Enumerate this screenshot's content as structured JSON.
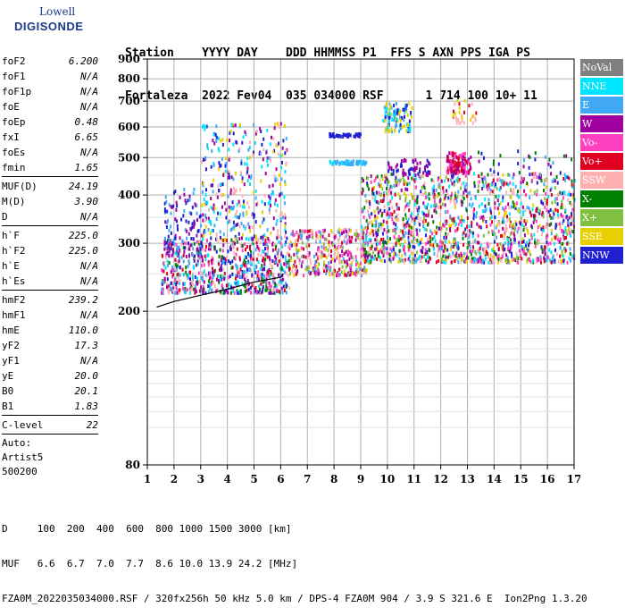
{
  "logo": {
    "line1": "Lowell",
    "line2": "DIGISONDE"
  },
  "header": {
    "line1": "Station    YYYY DAY    DDD HHMMSS P1  FFS S AXN PPS IGA PS",
    "line2": "Fortaleza  2022 Fev04  035 034000 RSF      1 714 100 10+ 11"
  },
  "params": {
    "group1": [
      {
        "label": "foF2",
        "value": "6.200"
      },
      {
        "label": "foF1",
        "value": "N/A"
      },
      {
        "label": "foF1p",
        "value": "N/A"
      },
      {
        "label": "foE",
        "value": "N/A"
      },
      {
        "label": "foEp",
        "value": "0.48"
      },
      {
        "label": "fxI",
        "value": "6.65"
      },
      {
        "label": "foEs",
        "value": "N/A"
      },
      {
        "label": "fmin",
        "value": "1.65"
      }
    ],
    "group2": [
      {
        "label": "MUF(D)",
        "value": "24.19"
      },
      {
        "label": "M(D)",
        "value": "3.90"
      },
      {
        "label": "D",
        "value": "N/A"
      }
    ],
    "group3": [
      {
        "label": "h`F",
        "value": "225.0"
      },
      {
        "label": "h`F2",
        "value": "225.0"
      },
      {
        "label": "h`E",
        "value": "N/A"
      },
      {
        "label": "h`Es",
        "value": "N/A"
      }
    ],
    "group4": [
      {
        "label": "hmF2",
        "value": "239.2"
      },
      {
        "label": "hmF1",
        "value": "N/A"
      },
      {
        "label": "hmE",
        "value": "110.0"
      },
      {
        "label": "yF2",
        "value": "17.3"
      },
      {
        "label": "yF1",
        "value": "N/A"
      },
      {
        "label": "yE",
        "value": "20.0"
      },
      {
        "label": "B0",
        "value": "20.1"
      },
      {
        "label": "B1",
        "value": "1.83"
      }
    ],
    "clevel": {
      "label": "C-level",
      "value": "22"
    },
    "auto": [
      "Auto:",
      "Artist5",
      "500200"
    ]
  },
  "legend": [
    {
      "label": "NoVal",
      "color": "#808080"
    },
    {
      "label": "NNE",
      "color": "#00e5ff"
    },
    {
      "label": "E",
      "color": "#3fa9f5"
    },
    {
      "label": "W",
      "color": "#a000a0"
    },
    {
      "label": "Vo-",
      "color": "#ff40c0"
    },
    {
      "label": "Vo+",
      "color": "#e00020"
    },
    {
      "label": "SSW",
      "color": "#ffb0b0"
    },
    {
      "label": "X-",
      "color": "#008000"
    },
    {
      "label": "X+",
      "color": "#80c040"
    },
    {
      "label": "SSE",
      "color": "#e8d000"
    },
    {
      "label": "NNW",
      "color": "#2020d0"
    }
  ],
  "footer": {
    "line1": "D     100  200  400  600  800 1000 1500 3000 [km]",
    "line2": "MUF   6.6  6.7  7.0  7.7  8.6 10.0 13.9 24.2 [MHz]",
    "line3": "FZA0M_2022035034000.RSF / 320fx256h 50 kHz 5.0 km / DPS-4 FZA0M 904 / 3.9 S 321.6 E  Ion2Png 1.3.20"
  },
  "chart_data": {
    "type": "scatter",
    "title": "",
    "xlabel": "",
    "ylabel": "",
    "xlim": [
      1,
      17
    ],
    "ylim": [
      80,
      900
    ],
    "y_scale": "log",
    "x_ticks": [
      "1",
      "2",
      "3",
      "4",
      "5",
      "6",
      "7",
      "8",
      "9",
      "10",
      "11",
      "12",
      "13",
      "14",
      "15",
      "16",
      "17"
    ],
    "y_ticks": [
      "80",
      "200",
      "300",
      "400",
      "500",
      "600",
      "700",
      "800",
      "900"
    ],
    "grid": true,
    "trace": {
      "x": [
        1.35,
        2.0,
        3.0,
        4.0,
        5.0,
        6.0,
        6.1
      ],
      "y": [
        205,
        212,
        220,
        228,
        238,
        245,
        250
      ]
    },
    "clusters": [
      {
        "x": [
          1.5,
          6.3
        ],
        "y": [
          225,
          310
        ],
        "n": 700,
        "colors": [
          "#a000a0",
          "#ff40c0",
          "#e00020",
          "#3fa9f5",
          "#2020d0",
          "#008000",
          "#ffb0b0",
          "#00e5ff"
        ]
      },
      {
        "x": [
          6.3,
          9.2
        ],
        "y": [
          250,
          330
        ],
        "n": 350,
        "colors": [
          "#ff40c0",
          "#e8d000",
          "#80c040",
          "#ffb0b0",
          "#e00020",
          "#3fa9f5",
          "#a000a0"
        ]
      },
      {
        "x": [
          9.0,
          17.0
        ],
        "y": [
          270,
          460
        ],
        "n": 1500,
        "colors": [
          "#2020d0",
          "#a000a0",
          "#ff40c0",
          "#3fa9f5",
          "#e8d000",
          "#008000",
          "#80c040",
          "#e00020",
          "#00e5ff",
          "#ffb0b0"
        ]
      },
      {
        "x": [
          3.0,
          6.2
        ],
        "y": [
          310,
          620
        ],
        "n": 380,
        "colors": [
          "#3fa9f5",
          "#00e5ff",
          "#ffb0b0",
          "#e8d000",
          "#a000a0",
          "#2020d0"
        ]
      },
      {
        "x": [
          1.6,
          3.0
        ],
        "y": [
          280,
          420
        ],
        "n": 120,
        "colors": [
          "#a000a0",
          "#3fa9f5",
          "#2020d0"
        ]
      },
      {
        "x": [
          7.8,
          9.2
        ],
        "y": [
          485,
          495
        ],
        "n": 70,
        "colors": [
          "#00e5ff",
          "#3fa9f5"
        ]
      },
      {
        "x": [
          7.8,
          9.0
        ],
        "y": [
          572,
          582
        ],
        "n": 45,
        "colors": [
          "#2020d0"
        ]
      },
      {
        "x": [
          9.8,
          10.9
        ],
        "y": [
          590,
          700
        ],
        "n": 110,
        "colors": [
          "#00e5ff",
          "#2020d0",
          "#3fa9f5",
          "#e8d000"
        ]
      },
      {
        "x": [
          12.2,
          13.1
        ],
        "y": [
          460,
          520
        ],
        "n": 130,
        "colors": [
          "#a000a0",
          "#ff40c0",
          "#e00020"
        ]
      },
      {
        "x": [
          10.0,
          11.6
        ],
        "y": [
          455,
          500
        ],
        "n": 60,
        "colors": [
          "#2020d0",
          "#a000a0"
        ]
      },
      {
        "x": [
          12.4,
          13.3
        ],
        "y": [
          620,
          710
        ],
        "n": 30,
        "colors": [
          "#e00020",
          "#e8d000",
          "#ffb0b0"
        ]
      },
      {
        "x": [
          13.0,
          17.0
        ],
        "y": [
          430,
          530
        ],
        "n": 40,
        "colors": [
          "#2020d0",
          "#a000a0",
          "#008000",
          "#3fa9f5"
        ]
      }
    ]
  }
}
